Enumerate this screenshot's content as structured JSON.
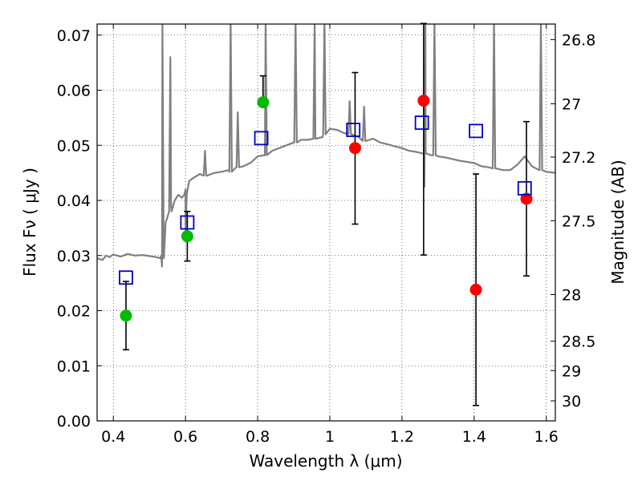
{
  "chart_data": {
    "type": "scatter",
    "title": "",
    "xlabel": "Wavelength  λ (μm)",
    "ylabel": "Flux  Fν  ( μJy )",
    "y2label": "Magnitude (AB)",
    "xlim": [
      0.355,
      1.625
    ],
    "ylim": [
      0.0,
      0.072
    ],
    "xticks": [
      "0.4",
      "0.6",
      "0.8",
      "1",
      "1.2",
      "1.4",
      "1.6"
    ],
    "yticks": [
      "0.00",
      "0.01",
      "0.02",
      "0.03",
      "0.04",
      "0.05",
      "0.06",
      "0.07"
    ],
    "mag_ticks": [
      "26.8",
      "27",
      "27.2",
      "27.5",
      "28",
      "28.5",
      "29",
      "30"
    ],
    "grid": true,
    "grid_style": "dotted",
    "colors": {
      "model": "#808080",
      "green_points": "#00bb00",
      "red_points": "#ff0000",
      "squares": "#0000cc",
      "errorbars": "#000000"
    },
    "model_sed": {
      "x": [
        0.355,
        0.37,
        0.38,
        0.39,
        0.4,
        0.42,
        0.44,
        0.46,
        0.48,
        0.5,
        0.52,
        0.53,
        0.535,
        0.54,
        0.545,
        0.55,
        0.56,
        0.57,
        0.58,
        0.59,
        0.6,
        0.61,
        0.62,
        0.64,
        0.66,
        0.68,
        0.7,
        0.72,
        0.74,
        0.76,
        0.78,
        0.8,
        0.82,
        0.84,
        0.86,
        0.88,
        0.9,
        0.92,
        0.94,
        0.96,
        0.98,
        1.0,
        1.02,
        1.04,
        1.06,
        1.08,
        1.1,
        1.12,
        1.14,
        1.16,
        1.18,
        1.2,
        1.22,
        1.24,
        1.26,
        1.28,
        1.3,
        1.32,
        1.34,
        1.36,
        1.38,
        1.4,
        1.42,
        1.44,
        1.46,
        1.48,
        1.5,
        1.52,
        1.54,
        1.56,
        1.58,
        1.6,
        1.625
      ],
      "y": [
        0.0295,
        0.0292,
        0.03,
        0.0297,
        0.0302,
        0.0298,
        0.0303,
        0.03,
        0.0301,
        0.0299,
        0.0297,
        0.0295,
        0.028,
        0.0295,
        0.036,
        0.037,
        0.039,
        0.04,
        0.041,
        0.0405,
        0.042,
        0.0435,
        0.044,
        0.0448,
        0.0445,
        0.045,
        0.0452,
        0.0455,
        0.046,
        0.0462,
        0.0468,
        0.048,
        0.0482,
        0.049,
        0.0495,
        0.05,
        0.0505,
        0.051,
        0.051,
        0.0512,
        0.0515,
        0.053,
        0.0528,
        0.0522,
        0.052,
        0.0515,
        0.0508,
        0.0512,
        0.0505,
        0.0502,
        0.0498,
        0.0495,
        0.049,
        0.0488,
        0.0485,
        0.0482,
        0.048,
        0.0478,
        0.0475,
        0.0472,
        0.047,
        0.0468,
        0.0462,
        0.046,
        0.0458,
        0.0455,
        0.0455,
        0.0465,
        0.048,
        0.0462,
        0.0455,
        0.0452,
        0.045
      ],
      "emission_lines": [
        {
          "x": 0.536,
          "top": 0.0725,
          "base": 0.03
        },
        {
          "x": 0.558,
          "top": 0.066,
          "base": 0.038
        },
        {
          "x": 0.654,
          "top": 0.049,
          "base": 0.0445
        },
        {
          "x": 0.725,
          "top": 0.0725,
          "base": 0.0452
        },
        {
          "x": 0.745,
          "top": 0.056,
          "base": 0.046
        },
        {
          "x": 0.822,
          "top": 0.0725,
          "base": 0.0482
        },
        {
          "x": 0.905,
          "top": 0.0725,
          "base": 0.0505
        },
        {
          "x": 0.958,
          "top": 0.0725,
          "base": 0.0512
        },
        {
          "x": 0.985,
          "top": 0.0725,
          "base": 0.052
        },
        {
          "x": 1.055,
          "top": 0.058,
          "base": 0.052
        },
        {
          "x": 1.095,
          "top": 0.057,
          "base": 0.0508
        },
        {
          "x": 1.265,
          "top": 0.0725,
          "base": 0.0485
        },
        {
          "x": 1.29,
          "top": 0.0725,
          "base": 0.0482
        },
        {
          "x": 1.455,
          "top": 0.0725,
          "base": 0.0458
        },
        {
          "x": 1.585,
          "top": 0.0725,
          "base": 0.0455
        }
      ],
      "absorption_lines": [
        {
          "x": 0.6,
          "bottom": 0.0345,
          "base": 0.041
        },
        {
          "x": 1.262,
          "bottom": 0.0425,
          "base": 0.0485
        }
      ]
    },
    "series": [
      {
        "name": "",
        "marker": "circle",
        "color": "#00bb00",
        "x": [
          0.435,
          0.605,
          0.815
        ],
        "y": [
          0.0191,
          0.0335,
          0.0578
        ],
        "err_low": [
          0.0062,
          0.0045,
          0.0
        ],
        "err_high": [
          0.0062,
          0.0045,
          0.0048
        ]
      },
      {
        "name": "",
        "marker": "circle",
        "color": "#ff0000",
        "x": [
          1.07,
          1.26,
          1.405,
          1.545
        ],
        "y": [
          0.0495,
          0.0581,
          0.0238,
          0.0403
        ],
        "err_low": [
          0.0138,
          0.028,
          0.021,
          0.014
        ],
        "err_high": [
          0.0137,
          0.014,
          0.021,
          0.014
        ]
      },
      {
        "name": "",
        "marker": "square-open",
        "color": "#0000cc",
        "x": [
          0.435,
          0.605,
          0.81,
          1.065,
          1.255,
          1.405,
          1.54
        ],
        "y": [
          0.026,
          0.036,
          0.0513,
          0.0528,
          0.0541,
          0.0526,
          0.0422
        ]
      }
    ]
  }
}
